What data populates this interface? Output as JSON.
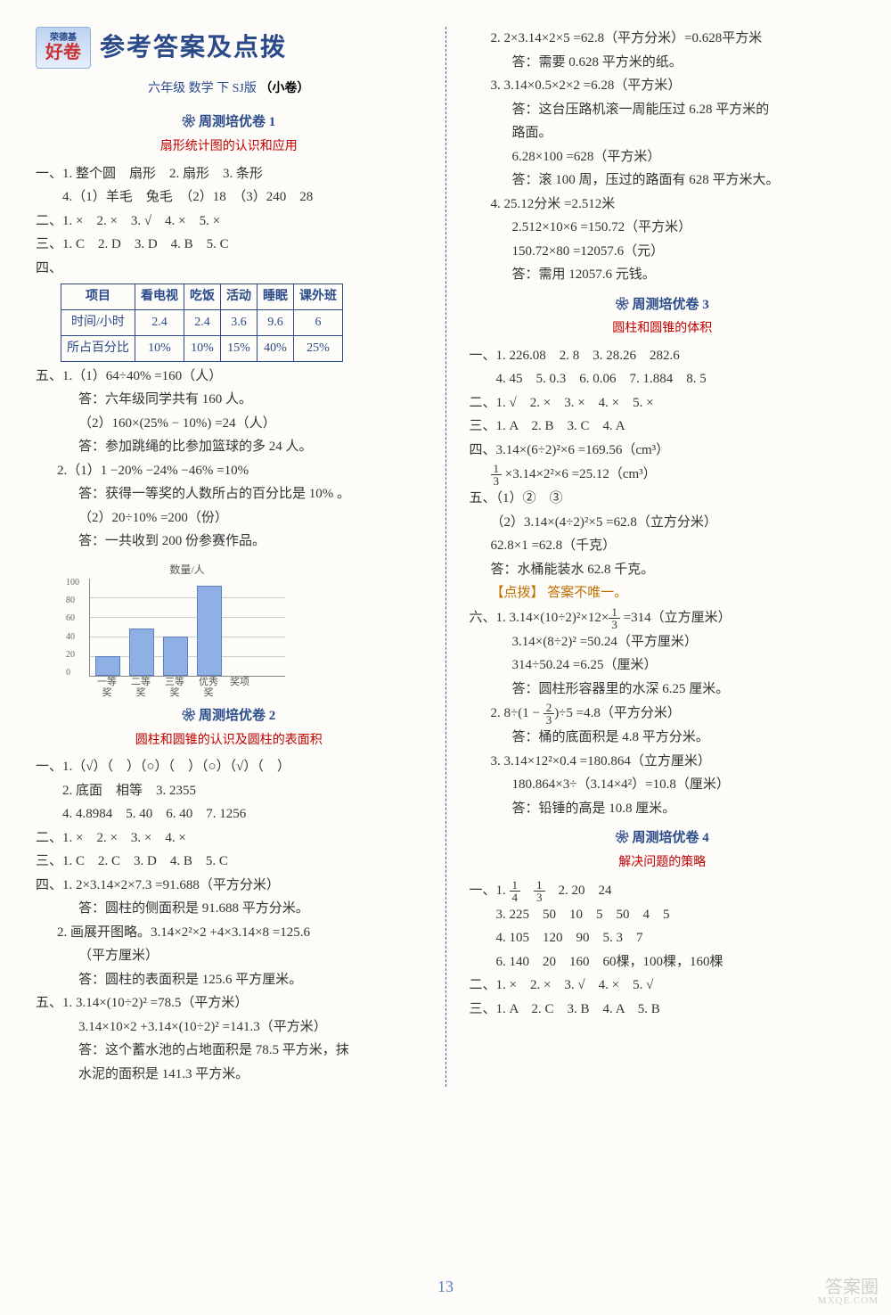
{
  "header": {
    "brand_small": "荣德基",
    "brand": "好卷",
    "title": "参考答案及点拨",
    "subtitle_pre": "六年级 数学 下 SJ版",
    "subtitle_badge": "（小卷）"
  },
  "page_number": "13",
  "watermark": {
    "main": "答案圈",
    "sub": "MXQE.COM"
  },
  "t1": {
    "title": "周测培优卷 1",
    "subtitle": "扇形统计图的认识和应用",
    "q1_1": "一、1. 整个圆　扇形　2. 扇形　3. 条形",
    "q1_4": "　　4.（1）羊毛　兔毛　（2）18　（3）240　28",
    "q2": "二、1. ×　2. ×　3. √　4. ×　5. ×",
    "q3": "三、1. C　2. D　3. D　4. B　5. C",
    "q4_label": "四、",
    "table": {
      "headers": [
        "项目",
        "看电视",
        "吃饭",
        "活动",
        "睡眠",
        "课外班"
      ],
      "rows": [
        [
          "时间/小时",
          "2.4",
          "2.4",
          "3.6",
          "9.6",
          "6"
        ],
        [
          "所占百分比",
          "10%",
          "10%",
          "15%",
          "40%",
          "25%"
        ]
      ]
    },
    "q5_1a": "五、1.（1）64÷40% =160（人）",
    "q5_1a_ans": "答：六年级同学共有 160 人。",
    "q5_1b": "（2）160×(25% − 10%) =24（人）",
    "q5_1b_ans": "答：参加跳绳的比参加篮球的多 24 人。",
    "q5_2a": "2.（1）1 −20% −24% −46% =10%",
    "q5_2a_ans": "答：获得一等奖的人数所占的百分比是 10% 。",
    "q5_2b": "（2）20÷10% =200（份）",
    "q5_2b_ans": "答：一共收到 200 份参赛作品。",
    "chart": {
      "ylabel": "数量/人",
      "xlabel": "奖项",
      "ymax": 100,
      "ytick": 20,
      "categories": [
        "一等奖",
        "二等奖",
        "三等奖",
        "优秀奖"
      ],
      "values": [
        20,
        48,
        40,
        92
      ],
      "ylabels": [
        "0",
        "20",
        "40",
        "60",
        "80",
        "100"
      ],
      "bar_color": "#8fb0e5"
    }
  },
  "t2": {
    "title": "周测培优卷 2",
    "subtitle": "圆柱和圆锥的认识及圆柱的表面积",
    "q1_1": "一、1.（√）（　）（○）（　）（○）（√）（　）",
    "q1_2": "　　2. 底面　相等　3. 2355",
    "q1_4": "　　4. 4.8984　5. 40　6. 40　7. 1256",
    "q2": "二、1. ×　2. ×　3. ×　4. ×",
    "q3": "三、1. C　2. C　3. D　4. B　5. C",
    "q4_1": "四、1. 2×3.14×2×7.3 =91.688（平方分米）",
    "q4_1_ans": "答：圆柱的侧面积是 91.688 平方分米。",
    "q4_2": "2. 画展开图略。3.14×2²×2 +4×3.14×8 =125.6",
    "q4_2u": "（平方厘米）",
    "q4_2_ans": "答：圆柱的表面积是 125.6 平方厘米。",
    "q5_1a": "五、1. 3.14×(10÷2)² =78.5（平方米）",
    "q5_1b": "3.14×10×2 +3.14×(10÷2)² =141.3（平方米）",
    "q5_1_ans": "答：这个蓄水池的占地面积是 78.5 平方米，抹",
    "q5_1_ans2": "水泥的面积是 141.3 平方米。"
  },
  "t2r": {
    "q5_2a": "2. 2×3.14×2×5 =62.8（平方分米）=0.628平方米",
    "q5_2a_ans": "答：需要 0.628 平方米的纸。",
    "q5_3a": "3. 3.14×0.5×2×2 =6.28（平方米）",
    "q5_3a_ans": "答：这台压路机滚一周能压过 6.28 平方米的",
    "q5_3a_ans2": "路面。",
    "q5_3b": "6.28×100 =628（平方米）",
    "q5_3b_ans": "答：滚 100 周，压过的路面有 628 平方米大。",
    "q5_4a": "4. 25.12分米 =2.512米",
    "q5_4b": "2.512×10×6 =150.72（平方米）",
    "q5_4c": "150.72×80 =12057.6（元）",
    "q5_4_ans": "答：需用 12057.6 元钱。"
  },
  "t3": {
    "title": "周测培优卷 3",
    "subtitle": "圆柱和圆锥的体积",
    "q1_1": "一、1. 226.08　2. 8　3. 28.26　282.6",
    "q1_4": "　　4. 45　5. 0.3　6. 0.06　7. 1.884　8. 5",
    "q2": "二、1. √　2. ×　3. ×　4. ×　5. ×",
    "q3": "三、1. A　2. B　3. C　4. A",
    "q4a": "四、3.14×(6÷2)²×6 =169.56（cm³）",
    "q4b_pre": "",
    "q4b": "×3.14×2²×6 =25.12（cm³）",
    "q5_1": "五、（1）②　③",
    "q5_2a": "（2）3.14×(4÷2)²×5 =62.8（立方分米）",
    "q5_2b": "62.8×1 =62.8（千克）",
    "q5_2_ans": "答：水桶能装水 62.8 千克。",
    "q5_note": "【点拨】 答案不唯一。",
    "q6_1a_pre": "六、1. 3.14×(10÷2)²×12×",
    "q6_1a_post": " =314（立方厘米）",
    "q6_1b": "3.14×(8÷2)² =50.24（平方厘米）",
    "q6_1c": "314÷50.24 =6.25（厘米）",
    "q6_1_ans": "答：圆柱形容器里的水深 6.25 厘米。",
    "q6_2a_pre": "2. 8÷(1 − ",
    "q6_2a_post": ")÷5 =4.8（平方分米）",
    "q6_2_ans": "答：桶的底面积是 4.8 平方分米。",
    "q6_3a": "3. 3.14×12²×0.4 =180.864（立方厘米）",
    "q6_3b": "180.864×3÷（3.14×4²）=10.8（厘米）",
    "q6_3_ans": "答：铅锤的高是 10.8 厘米。"
  },
  "t4": {
    "title": "周测培优卷 4",
    "subtitle": "解决问题的策略",
    "q1_1_pre": "一、1. ",
    "q1_1_post": "　2. 20　24",
    "q1_3": "　　3. 225　50　10　5　50　4　5",
    "q1_4": "　　4. 105　120　90　5. 3　7",
    "q1_6": "　　6. 140　20　160　60棵，100棵，160棵",
    "q2": "二、1. ×　2. ×　3. √　4. ×　5. √",
    "q3": "三、1. A　2. C　3. B　4. A　5. B"
  }
}
